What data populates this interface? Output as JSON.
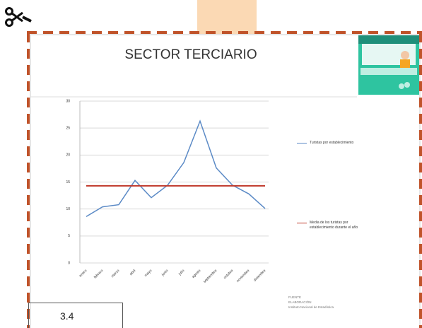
{
  "header": {
    "title": "SECTOR TERCIARIO"
  },
  "chart_data": {
    "type": "line",
    "categories": [
      "enero",
      "febrero",
      "marzo",
      "abril",
      "mayo",
      "junio",
      "julio",
      "agosto",
      "septiembre",
      "octubre",
      "noviembre",
      "diciembre"
    ],
    "series": [
      {
        "name": "Turistas por establecimiento",
        "color": "#5b8ac6",
        "values": [
          8.6,
          10.4,
          10.8,
          15.3,
          12.1,
          14.4,
          18.6,
          26.3,
          17.6,
          14.4,
          12.8,
          10.1
        ]
      },
      {
        "name": "Media de los turistas por establecimiento durante el año",
        "color": "#c0392b",
        "values": [
          14.3,
          14.3,
          14.3,
          14.3,
          14.3,
          14.3,
          14.3,
          14.3,
          14.3,
          14.3,
          14.3,
          14.3
        ]
      }
    ],
    "ylim": [
      0,
      30
    ],
    "yticks": [
      0,
      5,
      10,
      15,
      20,
      25,
      30
    ],
    "grid": true
  },
  "source_note": [
    "FUENTE",
    "ELABORACIÓN",
    "Instituto Nacional de Estadística"
  ],
  "footer": {
    "label": "3.4"
  }
}
